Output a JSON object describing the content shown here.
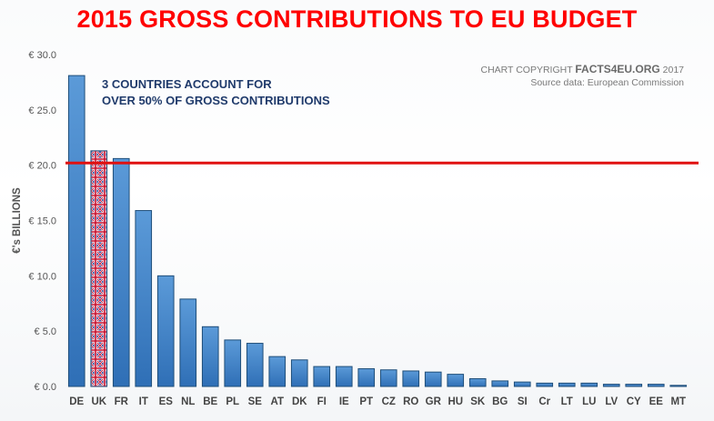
{
  "chart_data": {
    "type": "bar",
    "title": "2015 GROSS CONTRIBUTIONS TO EU BUDGET",
    "ylabel": "€'s BILLIONS",
    "xlabel": "",
    "ylim": [
      0,
      30
    ],
    "yticks": [
      "€ 0.0",
      "€ 5.0",
      "€ 10.0",
      "€ 15.0",
      "€ 20.0",
      "€ 25.0",
      "€ 30.0"
    ],
    "ytick_values": [
      0,
      5,
      10,
      15,
      20,
      25,
      30
    ],
    "grid": false,
    "categories": [
      "DE",
      "UK",
      "FR",
      "IT",
      "ES",
      "NL",
      "BE",
      "PL",
      "SE",
      "AT",
      "DK",
      "FI",
      "IE",
      "PT",
      "CZ",
      "RO",
      "GR",
      "HU",
      "SK",
      "BG",
      "SI",
      "Cr",
      "LT",
      "LU",
      "LV",
      "CY",
      "EE",
      "MT"
    ],
    "values": [
      28.1,
      21.3,
      20.6,
      15.9,
      10.0,
      7.9,
      5.4,
      4.2,
      3.9,
      2.7,
      2.4,
      1.8,
      1.8,
      1.6,
      1.5,
      1.4,
      1.3,
      1.1,
      0.7,
      0.5,
      0.4,
      0.3,
      0.3,
      0.3,
      0.2,
      0.2,
      0.2,
      0.1
    ],
    "highlight_category": "UK",
    "reference_line": 20.2,
    "annotation_lines": [
      "3 COUNTRIES ACCOUNT FOR",
      "OVER 50% OF GROSS CONTRIBUTIONS"
    ],
    "copyright_prefix": "CHART COPYRIGHT ",
    "copyright_brand": "FACTS4EU.ORG",
    "copyright_year": " 2017",
    "source": "Source data: European Commission",
    "colors": {
      "bar_top": "#5b9ad8",
      "bar_bottom": "#2f6fb6",
      "bar_stroke": "#1f4e79",
      "reference_line": "#e01010",
      "highlight_red": "#c8102e",
      "highlight_blue": "#1f3a93"
    }
  }
}
